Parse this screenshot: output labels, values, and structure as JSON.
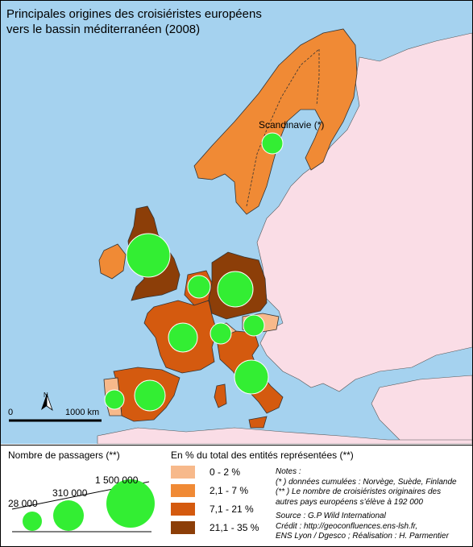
{
  "title_line1": "Principales origines des croisiéristes européens",
  "title_line2": "vers le bassin méditerranéen (2008)",
  "region_label": "Scandinavie (*)",
  "scale": {
    "zero": "0",
    "distance": "1000 km"
  },
  "north_arrow": "north-arrow-icon",
  "legend_size": {
    "title": "Nombre de passagers (**)",
    "values": [
      "28 000",
      "310 000",
      "1 500 000"
    ]
  },
  "legend_classes": {
    "title": "En % du total des entités représentées (**)",
    "classes": [
      {
        "label": "0 - 2 %",
        "color": "#f7b98b"
      },
      {
        "label": "2,1 - 7 %",
        "color": "#f08a35"
      },
      {
        "label": "7,1 - 21 %",
        "color": "#d45a0f"
      },
      {
        "label": "21,1 - 35 %",
        "color": "#8c3e08"
      }
    ]
  },
  "notes": {
    "heading": "Notes :",
    "line1": "(* ) données cumulées : Norvège, Suède, Finlande",
    "line2": "(** ) Le nombre de  croisiéristes originaires des",
    "line3": "autres pays européens s’élève à 192 000",
    "source": "Source : G.P Wild International",
    "credit": "Crédit : http://geoconfluences.ens-lsh.fr,",
    "credit2": "ENS Lyon / Dgesco ; Réalisation : H. Parmentier"
  },
  "colors": {
    "sea": "#a5d2ef",
    "other_land": "#fadde6",
    "circle": "#33ee33"
  }
}
